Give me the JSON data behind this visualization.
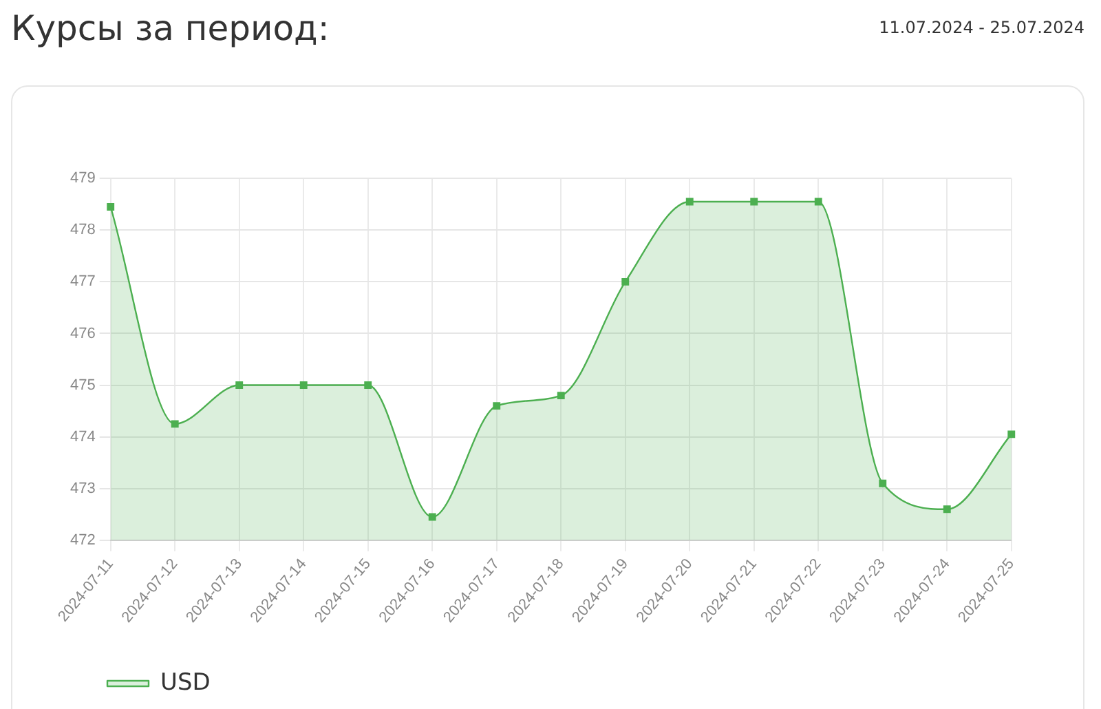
{
  "chart_data": {
    "type": "area",
    "title": "Курсы за период:",
    "subtitle": "11.07.2024 - 25.07.2024",
    "categories": [
      "2024-07-11",
      "2024-07-12",
      "2024-07-13",
      "2024-07-14",
      "2024-07-15",
      "2024-07-16",
      "2024-07-17",
      "2024-07-18",
      "2024-07-19",
      "2024-07-20",
      "2024-07-21",
      "2024-07-22",
      "2024-07-23",
      "2024-07-24",
      "2024-07-25"
    ],
    "series": [
      {
        "name": "USD",
        "color": "#4caf50",
        "values": [
          478.45,
          474.25,
          475.0,
          475.0,
          475.0,
          472.45,
          474.6,
          474.8,
          477.0,
          478.55,
          478.55,
          478.55,
          473.1,
          472.6,
          474.05
        ]
      }
    ],
    "ylim": [
      472,
      479
    ],
    "yticks": [
      472,
      473,
      474,
      475,
      476,
      477,
      478,
      479
    ],
    "grid": true,
    "legend": "bottom left",
    "marker": "square"
  }
}
